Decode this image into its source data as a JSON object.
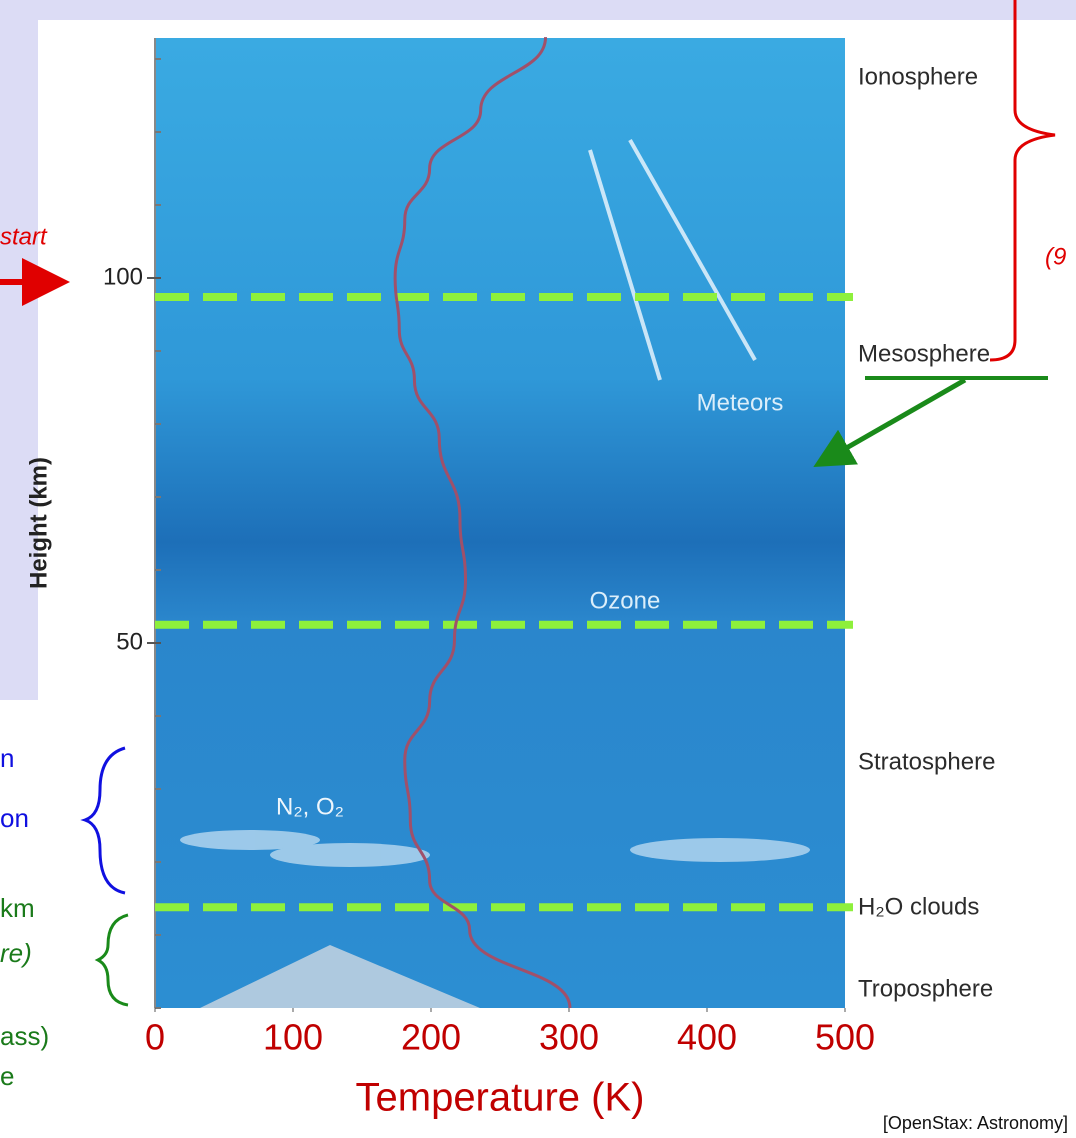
{
  "chart_data": {
    "type": "line",
    "y_label": "Height (km)",
    "x_label": "Temperature (K)",
    "x": [
      300.7,
      228,
      199,
      185,
      181,
      199,
      217,
      225,
      221,
      206,
      188,
      177,
      174,
      181,
      199,
      236,
      283
    ],
    "values": [
      0,
      10.7,
      17.5,
      25.7,
      34,
      42,
      50.4,
      58.6,
      67,
      78,
      86,
      93,
      100,
      108,
      115,
      123,
      133
    ],
    "color": "#a0506a",
    "xlim": [
      0,
      500
    ],
    "xticks": [
      0,
      100,
      200,
      300,
      400,
      500
    ],
    "ylim": [
      0,
      133
    ],
    "yticks": [
      50,
      100
    ],
    "minor_yticks": [
      0,
      10,
      20,
      30,
      40,
      60,
      70,
      80,
      90,
      110,
      120,
      130
    ],
    "reference_lines": [
      97.4,
      52.5,
      13.8
    ],
    "annotations": {
      "ionosphere": "Ionosphere",
      "mesosphere": "Mesosphere",
      "meteors": "Meteors",
      "ozone": "Ozone",
      "stratosphere": "Stratosphere",
      "gases": "N₂, O₂",
      "clouds": "H₂O clouds",
      "troposphere": "Troposphere"
    },
    "source": "[OpenStax: Astronomy]"
  },
  "slide_text": {
    "start": "start",
    "right_note": "(9",
    "blue_1": "n",
    "blue_2": "on",
    "green_1": "km",
    "green_2": "re)",
    "green_3": "ass)",
    "green_4": "e"
  }
}
